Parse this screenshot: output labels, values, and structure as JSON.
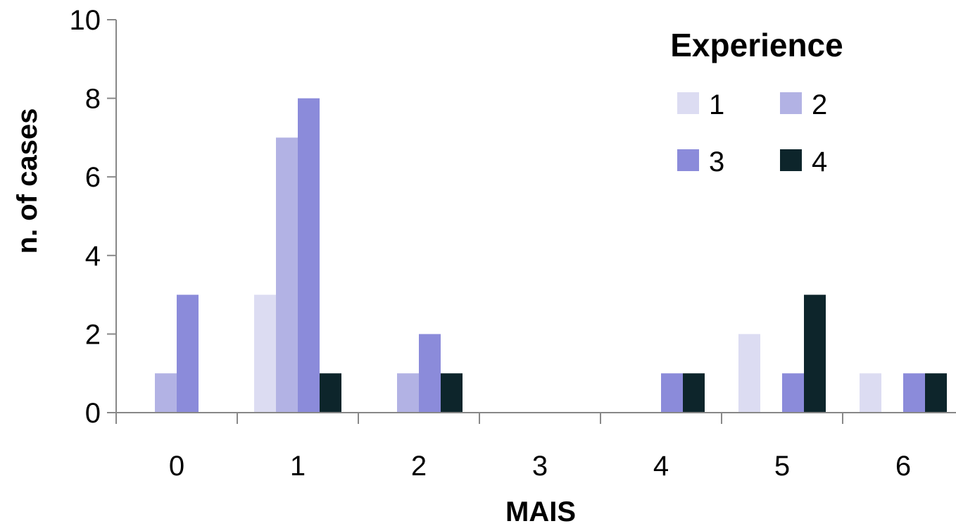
{
  "chart_data": {
    "type": "bar",
    "title": "",
    "xlabel": "MAIS",
    "ylabel": "n. of cases",
    "categories": [
      "0",
      "1",
      "2",
      "3",
      "4",
      "5",
      "6"
    ],
    "ylim": [
      0,
      10
    ],
    "yticks": [
      "0",
      "2",
      "4",
      "6",
      "8",
      "10"
    ],
    "grid": false,
    "legend": {
      "title": "Experience",
      "placement": "top-right"
    },
    "series": [
      {
        "name": "1",
        "color": "#dcdcf2",
        "values": [
          0,
          3,
          0,
          0,
          0,
          2,
          1
        ]
      },
      {
        "name": "2",
        "color": "#b2b2e4",
        "values": [
          1,
          7,
          1,
          0,
          0,
          0,
          0
        ]
      },
      {
        "name": "3",
        "color": "#8b8bda",
        "values": [
          3,
          8,
          2,
          0,
          1,
          1,
          1
        ]
      },
      {
        "name": "4",
        "color": "#0d252b",
        "values": [
          0,
          1,
          1,
          0,
          1,
          3,
          1
        ]
      }
    ]
  }
}
